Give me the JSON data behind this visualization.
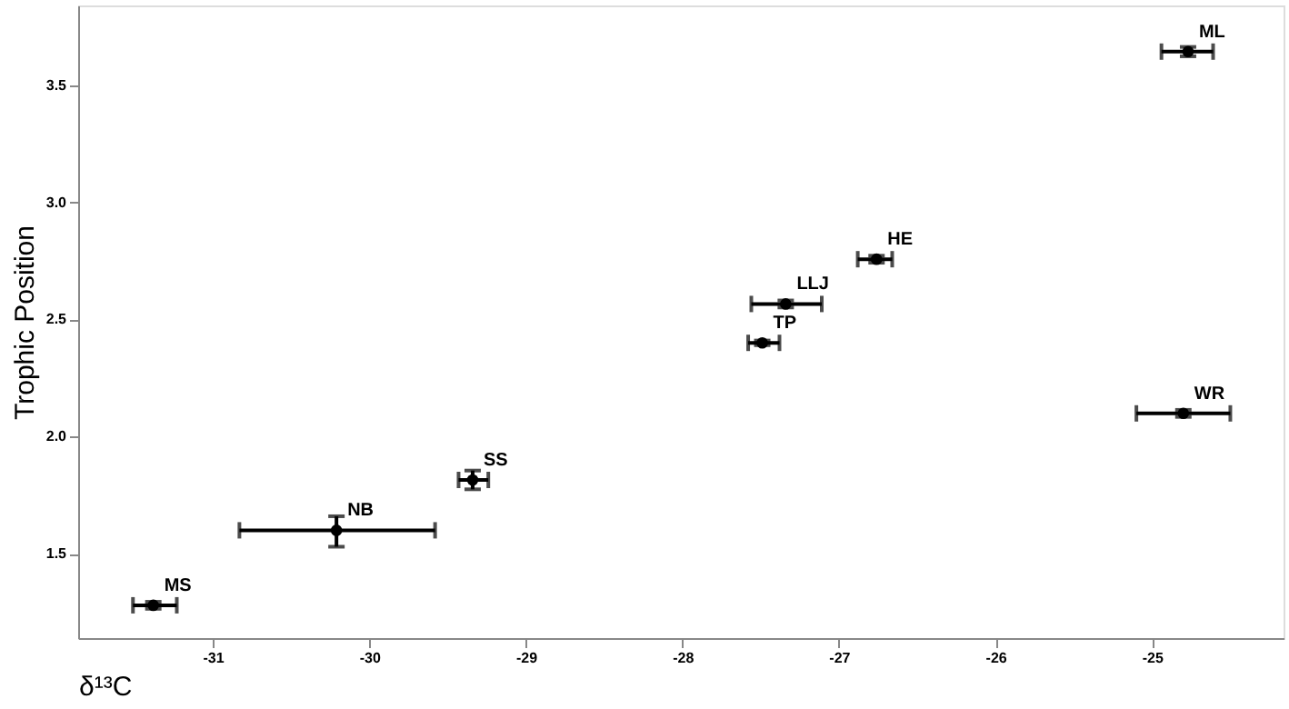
{
  "chart_data": {
    "type": "scatter",
    "xlabel": "δ¹³C",
    "ylabel": "Trophic Position",
    "x": [
      -31.38,
      -30.21,
      -29.34,
      -27.49,
      -27.34,
      -26.76,
      -24.77,
      -24.8
    ],
    "series": [
      {
        "color": "#000000",
        "values": [
          1.28,
          1.6,
          1.815,
          2.4,
          2.566,
          2.757,
          3.643,
          2.099
        ],
        "errors": [
          [
            1.265,
            1.295
          ],
          [
            1.53,
            1.66
          ],
          [
            1.775,
            1.855
          ],
          [
            2.39,
            2.41
          ],
          [
            2.551,
            2.581
          ],
          [
            2.742,
            2.772
          ],
          [
            3.623,
            3.663
          ],
          [
            2.084,
            2.114
          ]
        ],
        "xerrors": [
          [
            -31.51,
            -31.23
          ],
          [
            -30.83,
            -29.58
          ],
          [
            -29.43,
            -29.24
          ],
          [
            -27.58,
            -27.38
          ],
          [
            -27.56,
            -27.11
          ],
          [
            -26.88,
            -26.66
          ],
          [
            -24.94,
            -24.61
          ],
          [
            -25.1,
            -24.5
          ]
        ]
      }
    ],
    "annotations": [
      {
        "text": "MS",
        "x": -31.38,
        "y": 1.28
      },
      {
        "text": "NB",
        "x": -30.21,
        "y": 1.6
      },
      {
        "text": "SS",
        "x": -29.34,
        "y": 1.815
      },
      {
        "text": "TP",
        "x": -27.49,
        "y": 2.4
      },
      {
        "text": "LLJ",
        "x": -27.34,
        "y": 2.566
      },
      {
        "text": "HE",
        "x": -26.76,
        "y": 2.757
      },
      {
        "text": "ML",
        "x": -24.77,
        "y": 3.643
      },
      {
        "text": "WR",
        "x": -24.8,
        "y": 2.099
      }
    ],
    "xlim": [
      -31.86,
      -24.16
    ],
    "xticks": [
      -31,
      -30,
      -29,
      -28,
      -27,
      -26,
      -25
    ],
    "ylim": [
      1.14,
      3.84
    ],
    "yticks": [
      1.5,
      {
        "value": 2,
        "label": "2.0"
      },
      2.5,
      {
        "value": 3,
        "label": "3.0"
      },
      3.5
    ],
    "grid": false,
    "marker": "circle"
  }
}
